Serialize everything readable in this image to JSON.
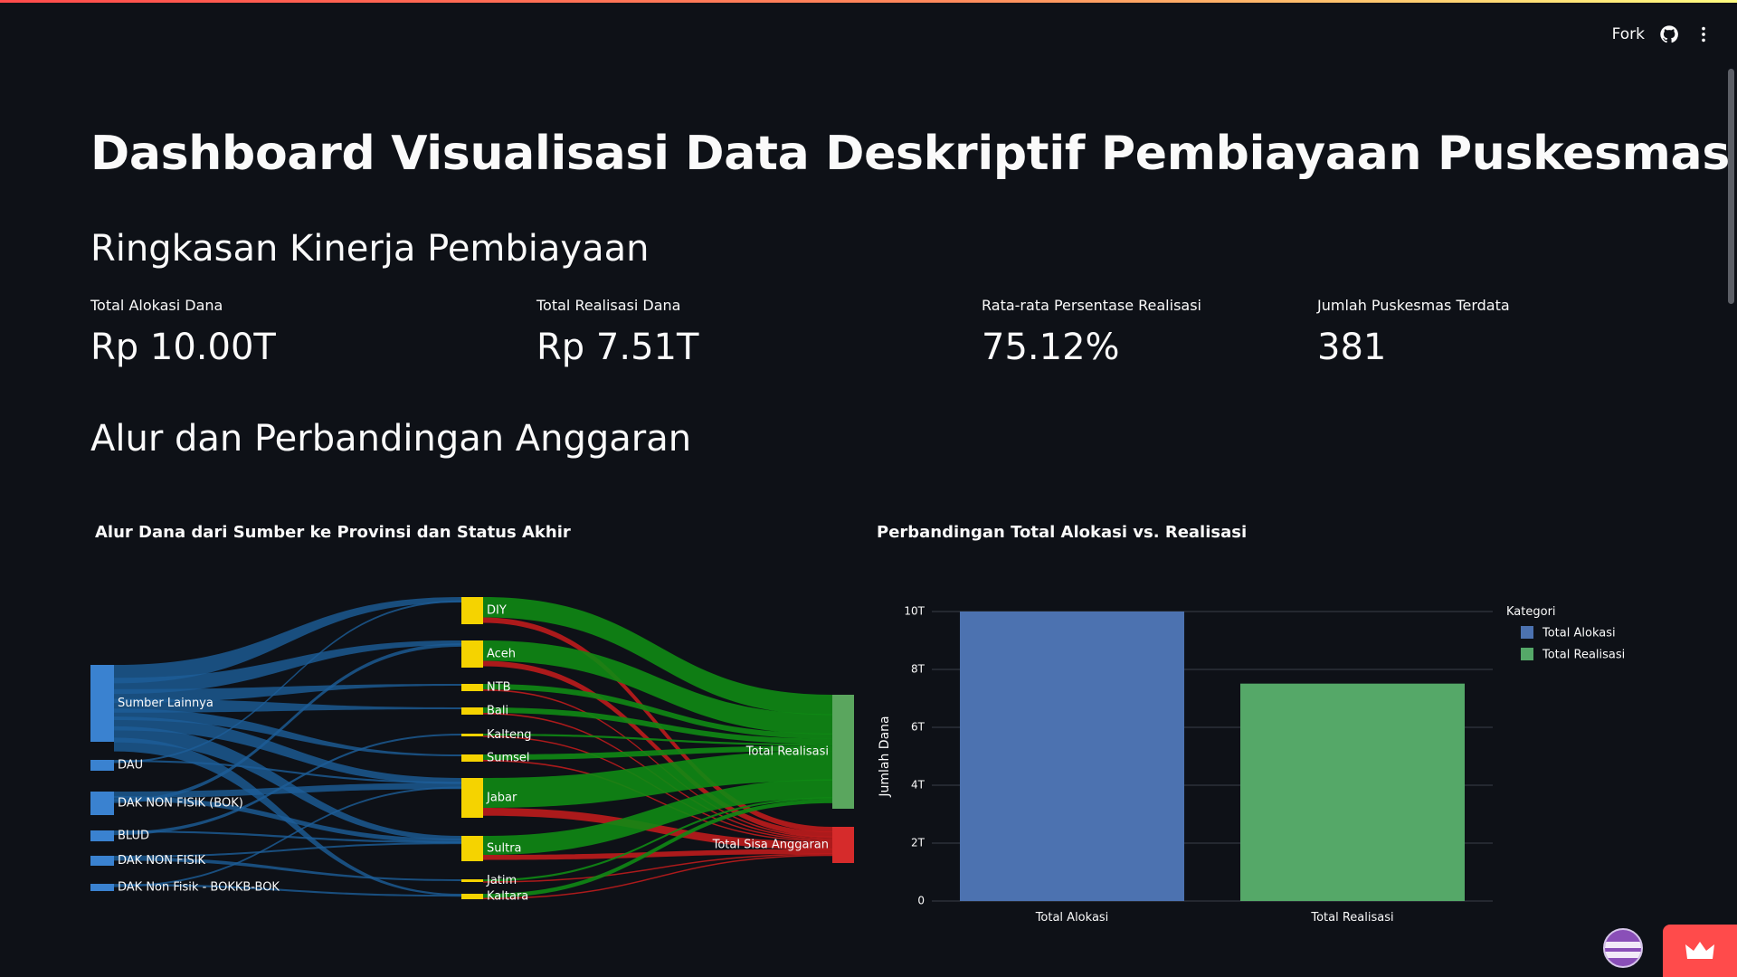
{
  "toolbar": {
    "fork_label": "Fork",
    "icons": [
      "github-icon",
      "more-vertical-icon"
    ]
  },
  "page": {
    "title": "Dashboard Visualisasi Data Deskriptif Pembiayaan Puskesmas",
    "section1_title": "Ringkasan Kinerja Pembiayaan",
    "section2_title": "Alur dan Perbandingan Anggaran"
  },
  "metrics": [
    {
      "label": "Total Alokasi Dana",
      "value": "Rp 10.00T"
    },
    {
      "label": "Total Realisasi Dana",
      "value": "Rp 7.51T"
    },
    {
      "label": "Rata-rata Persentase Realisasi",
      "value": "75.12%"
    },
    {
      "label": "Jumlah Puskesmas Terdata",
      "value": "381"
    }
  ],
  "sankey": {
    "title": "Alur Dana dari Sumber ke Provinsi dan Status Akhir",
    "sources": [
      "Sumber Lainnya",
      "DAU",
      "DAK NON FISIK (BOK)",
      "BLUD",
      "DAK NON FISIK",
      "DAK Non Fisik - BOKKB-BOK"
    ],
    "provinces": [
      "DIY",
      "Aceh",
      "NTB",
      "Bali",
      "Kalteng",
      "Sumsel",
      "Jabar",
      "Sultra",
      "Jatim",
      "Kaltara"
    ],
    "targets": [
      "Total Realisasi",
      "Total Sisa Anggaran"
    ],
    "colors": {
      "source": "#3a82d0",
      "province": "#f5d300",
      "realisasi": "#5aa65e",
      "sisa": "#d62b2b",
      "link_source": "#1d5e99",
      "link_real": "#0f8a14",
      "link_sisa": "#c81c1c"
    }
  },
  "chart_data": {
    "type": "bar",
    "title": "Perbandingan Total Alokasi vs. Realisasi",
    "categories": [
      "Total Alokasi",
      "Total Realisasi"
    ],
    "values": [
      10.0,
      7.51
    ],
    "ylabel": "Jumlah Dana",
    "xlabel": "",
    "yticks": [
      "0",
      "2T",
      "4T",
      "6T",
      "8T",
      "10T"
    ],
    "ylim": [
      0,
      10
    ],
    "legend_title": "Kategori",
    "legend": [
      "Total Alokasi",
      "Total Realisasi"
    ],
    "colors": [
      "#4c72b0",
      "#55a868"
    ],
    "grid": true,
    "legend_position": "top-right"
  }
}
